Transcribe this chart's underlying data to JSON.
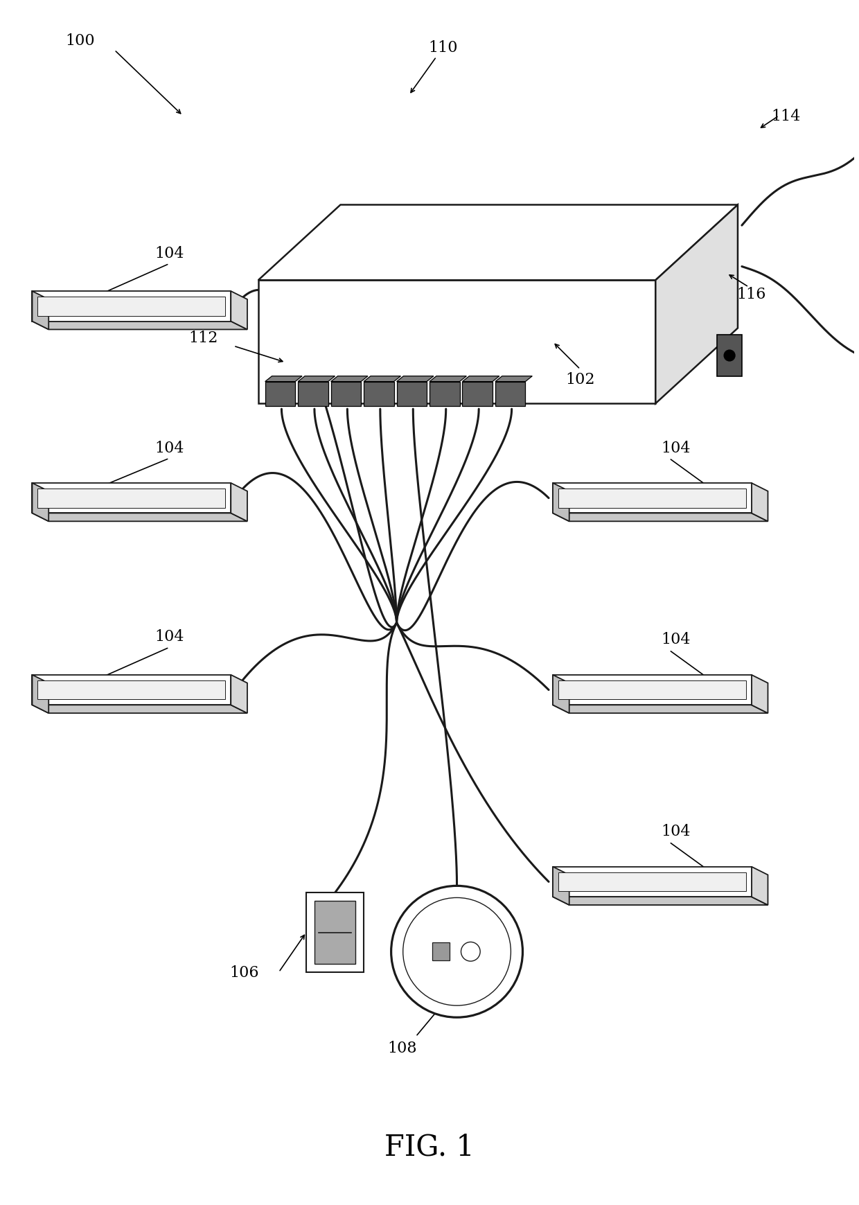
{
  "bg_color": "#ffffff",
  "line_color": "#1a1a1a",
  "label_fontsize": 16,
  "fig_label": "FIG. 1",
  "fig_label_fontsize": 30
}
